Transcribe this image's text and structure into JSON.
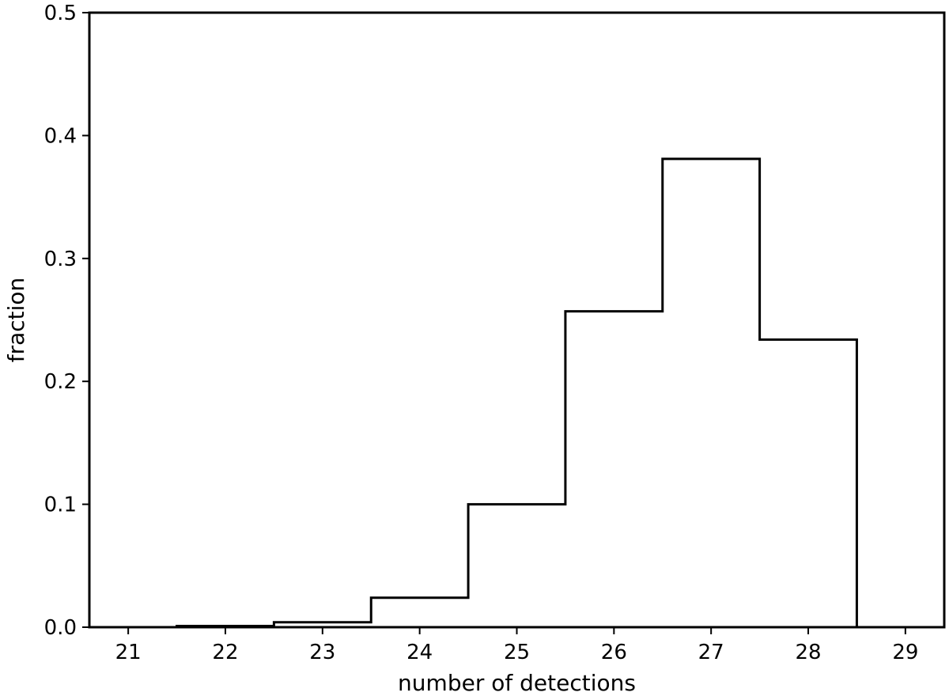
{
  "chart_data": {
    "type": "histogram-step",
    "title": "",
    "xlabel": "number of detections",
    "ylabel": "fraction",
    "xlim": [
      20.6,
      29.4
    ],
    "ylim": [
      0.0,
      0.5
    ],
    "x_ticks": [
      21,
      22,
      23,
      24,
      25,
      26,
      27,
      28,
      29
    ],
    "y_ticks": [
      0.0,
      0.1,
      0.2,
      0.3,
      0.4,
      0.5
    ],
    "x_tick_labels": [
      "21",
      "22",
      "23",
      "24",
      "25",
      "26",
      "27",
      "28",
      "29"
    ],
    "y_tick_labels": [
      "0.0",
      "0.1",
      "0.2",
      "0.3",
      "0.4",
      "0.5"
    ],
    "bin_edges": [
      21.5,
      22.5,
      23.5,
      24.5,
      25.5,
      26.5,
      27.5,
      28.5
    ],
    "values": [
      0.001,
      0.004,
      0.024,
      0.1,
      0.257,
      0.381,
      0.234
    ],
    "grid": false,
    "legend": "none",
    "line_color": "#000000"
  }
}
